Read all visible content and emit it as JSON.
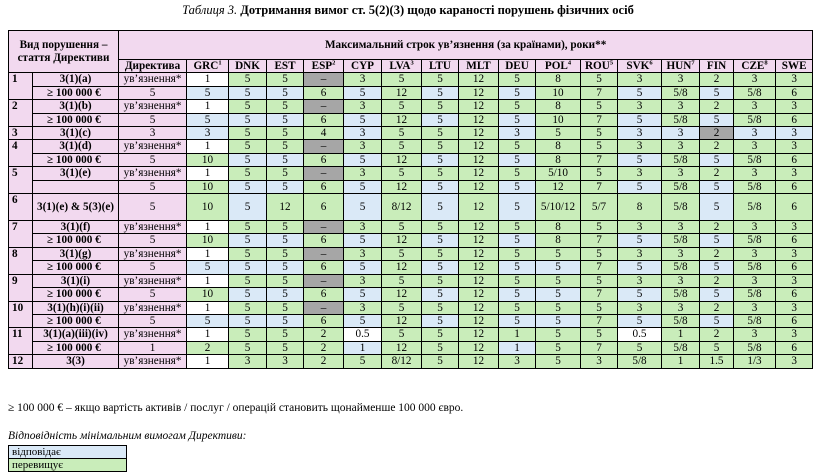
{
  "caption": {
    "lead": "Таблиця 3.",
    "title": "Дотримання вимог ст. 5(2)(3) щодо караності порушень фізичних осіб"
  },
  "header": {
    "col_violation": "Вид порушення – стаття Директиви",
    "col_max_term": "Максимальний строк ув’язнення (за країнами), роки**",
    "directive": "Директива",
    "countries": [
      {
        "code": "GRC",
        "sup": "1"
      },
      {
        "code": "DNK",
        "sup": ""
      },
      {
        "code": "EST",
        "sup": ""
      },
      {
        "code": "ESP",
        "sup": "2"
      },
      {
        "code": "CYP",
        "sup": ""
      },
      {
        "code": "LVA",
        "sup": "3"
      },
      {
        "code": "LTU",
        "sup": ""
      },
      {
        "code": "MLT",
        "sup": ""
      },
      {
        "code": "DEU",
        "sup": ""
      },
      {
        "code": "POL",
        "sup": "4"
      },
      {
        "code": "ROU",
        "sup": "5"
      },
      {
        "code": "SVK",
        "sup": "6"
      },
      {
        "code": "HUN",
        "sup": "7"
      },
      {
        "code": "FIN",
        "sup": ""
      },
      {
        "code": "CZE",
        "sup": "8"
      },
      {
        "code": "SWE",
        "sup": ""
      }
    ]
  },
  "colors": {
    "pink": "#f2d9ef",
    "blue": "#dae9f7",
    "green": "#c9edba",
    "gray": "#a6a6a6"
  },
  "groups": [
    {
      "num": "1",
      "rows": [
        {
          "art": "3(1)(a)",
          "dir": "ув’язнення*",
          "vals": [
            "1",
            "5",
            "5",
            "–",
            "3",
            "5",
            "5",
            "12",
            "5",
            "8",
            "5",
            "3",
            "3",
            "2",
            "3",
            "3"
          ],
          "colors": [
            "w",
            "g",
            "g",
            "y",
            "g",
            "g",
            "g",
            "g",
            "g",
            "g",
            "g",
            "g",
            "g",
            "g",
            "g",
            "g"
          ]
        },
        {
          "art": "≥ 100 000 €",
          "dir": "5",
          "vals": [
            "5",
            "5",
            "5",
            "6",
            "5",
            "12",
            "5",
            "12",
            "5",
            "10",
            "7",
            "5",
            "5/8",
            "5",
            "5/8",
            "6"
          ],
          "colors": [
            "b",
            "b",
            "b",
            "g",
            "b",
            "g",
            "b",
            "g",
            "b",
            "g",
            "g",
            "b",
            "g",
            "b",
            "g",
            "g"
          ]
        }
      ]
    },
    {
      "num": "2",
      "rows": [
        {
          "art": "3(1)(b)",
          "dir": "ув’язнення*",
          "vals": [
            "1",
            "5",
            "5",
            "–",
            "3",
            "5",
            "5",
            "12",
            "5",
            "8",
            "5",
            "3",
            "3",
            "2",
            "3",
            "3"
          ],
          "colors": [
            "w",
            "g",
            "g",
            "y",
            "g",
            "g",
            "g",
            "g",
            "g",
            "g",
            "g",
            "g",
            "g",
            "g",
            "g",
            "g"
          ]
        },
        {
          "art": "≥ 100 000 €",
          "dir": "5",
          "vals": [
            "5",
            "5",
            "5",
            "6",
            "5",
            "12",
            "5",
            "12",
            "5",
            "10",
            "7",
            "5",
            "5/8",
            "5",
            "5/8",
            "6"
          ],
          "colors": [
            "b",
            "b",
            "b",
            "g",
            "b",
            "g",
            "b",
            "g",
            "b",
            "g",
            "g",
            "b",
            "g",
            "b",
            "g",
            "g"
          ]
        }
      ]
    },
    {
      "num": "3",
      "rows": [
        {
          "art": "3(1)(c)",
          "dir": "3",
          "vals": [
            "3",
            "5",
            "5",
            "4",
            "3",
            "5",
            "5",
            "12",
            "3",
            "5",
            "5",
            "3",
            "3",
            "2",
            "3",
            "3"
          ],
          "colors": [
            "b",
            "g",
            "g",
            "g",
            "b",
            "g",
            "g",
            "g",
            "b",
            "g",
            "g",
            "b",
            "b",
            "y",
            "b",
            "b"
          ]
        }
      ]
    },
    {
      "num": "4",
      "rows": [
        {
          "art": "3(1)(d)",
          "dir": "ув’язнення*",
          "vals": [
            "1",
            "5",
            "5",
            "–",
            "3",
            "5",
            "5",
            "12",
            "5",
            "8",
            "5",
            "3",
            "3",
            "2",
            "3",
            "3"
          ],
          "colors": [
            "w",
            "g",
            "g",
            "y",
            "g",
            "g",
            "g",
            "g",
            "g",
            "g",
            "g",
            "g",
            "g",
            "g",
            "g",
            "g"
          ]
        },
        {
          "art": "≥ 100 000 €",
          "dir": "5",
          "vals": [
            "10",
            "5",
            "5",
            "6",
            "5",
            "12",
            "5",
            "12",
            "5",
            "8",
            "7",
            "5",
            "5/8",
            "5",
            "5/8",
            "6"
          ],
          "colors": [
            "g",
            "b",
            "b",
            "g",
            "b",
            "g",
            "b",
            "g",
            "b",
            "g",
            "g",
            "b",
            "g",
            "b",
            "g",
            "g"
          ]
        }
      ]
    },
    {
      "num": "5",
      "rows": [
        {
          "art": "3(1)(e)",
          "dir": "ув’язнення*",
          "vals": [
            "1",
            "5",
            "5",
            "–",
            "3",
            "5",
            "5",
            "12",
            "5",
            "5/10",
            "5",
            "3",
            "3",
            "2",
            "3",
            "3"
          ],
          "colors": [
            "w",
            "g",
            "g",
            "y",
            "g",
            "g",
            "g",
            "g",
            "g",
            "g",
            "g",
            "g",
            "g",
            "g",
            "g",
            "g"
          ]
        },
        {
          "art": "",
          "dir": "5",
          "vals": [
            "10",
            "5",
            "5",
            "6",
            "5",
            "12",
            "5",
            "12",
            "5",
            "12",
            "7",
            "5",
            "5/8",
            "5",
            "5/8",
            "6"
          ],
          "colors": [
            "g",
            "b",
            "b",
            "g",
            "b",
            "g",
            "b",
            "g",
            "b",
            "g",
            "g",
            "b",
            "g",
            "b",
            "g",
            "g"
          ]
        }
      ]
    },
    {
      "num": "6",
      "rows": [
        {
          "art": "3(1)(e) & 5(3)(e)",
          "dir": "5",
          "vals": [
            "10",
            "5",
            "12",
            "6",
            "5",
            "8/12",
            "5",
            "12",
            "5",
            "5/10/12",
            "5/7",
            "8",
            "5/8",
            "5",
            "5/8",
            "6"
          ],
          "colors": [
            "g",
            "b",
            "g",
            "g",
            "b",
            "g",
            "b",
            "g",
            "b",
            "g",
            "g",
            "g",
            "g",
            "b",
            "g",
            "g"
          ],
          "tall": true
        }
      ]
    },
    {
      "num": "7",
      "rows": [
        {
          "art": "3(1)(f)",
          "dir": "ув’язнення*",
          "vals": [
            "1",
            "5",
            "5",
            "–",
            "3",
            "5",
            "5",
            "12",
            "5",
            "8",
            "5",
            "3",
            "3",
            "2",
            "3",
            "3"
          ],
          "colors": [
            "w",
            "g",
            "g",
            "y",
            "g",
            "g",
            "g",
            "g",
            "g",
            "g",
            "g",
            "g",
            "g",
            "g",
            "g",
            "g"
          ]
        },
        {
          "art": "≥ 100 000 €",
          "dir": "5",
          "vals": [
            "10",
            "5",
            "5",
            "6",
            "5",
            "12",
            "5",
            "12",
            "5",
            "8",
            "7",
            "5",
            "5/8",
            "5",
            "5/8",
            "6"
          ],
          "colors": [
            "g",
            "b",
            "b",
            "g",
            "b",
            "g",
            "b",
            "g",
            "b",
            "g",
            "g",
            "b",
            "g",
            "b",
            "g",
            "g"
          ]
        }
      ]
    },
    {
      "num": "8",
      "rows": [
        {
          "art": "3(1)(g)",
          "dir": "ув’язнення*",
          "vals": [
            "1",
            "5",
            "5",
            "–",
            "3",
            "5",
            "5",
            "12",
            "5",
            "5",
            "5",
            "3",
            "3",
            "2",
            "3",
            "3"
          ],
          "colors": [
            "w",
            "g",
            "g",
            "y",
            "g",
            "g",
            "g",
            "g",
            "g",
            "g",
            "g",
            "g",
            "g",
            "g",
            "g",
            "g"
          ]
        },
        {
          "art": "≥ 100 000 €",
          "dir": "5",
          "vals": [
            "5",
            "5",
            "5",
            "6",
            "5",
            "12",
            "5",
            "12",
            "5",
            "5",
            "7",
            "5",
            "5/8",
            "5",
            "5/8",
            "6"
          ],
          "colors": [
            "b",
            "b",
            "b",
            "g",
            "b",
            "g",
            "b",
            "g",
            "b",
            "b",
            "g",
            "b",
            "g",
            "b",
            "g",
            "g"
          ]
        }
      ]
    },
    {
      "num": "9",
      "rows": [
        {
          "art": "3(1)(i)",
          "dir": "ув’язнення*",
          "vals": [
            "1",
            "5",
            "5",
            "–",
            "3",
            "5",
            "5",
            "12",
            "5",
            "5",
            "5",
            "3",
            "3",
            "2",
            "3",
            "3"
          ],
          "colors": [
            "w",
            "g",
            "g",
            "y",
            "g",
            "g",
            "g",
            "g",
            "g",
            "g",
            "g",
            "g",
            "g",
            "g",
            "g",
            "g"
          ]
        },
        {
          "art": "≥ 100 000 €",
          "dir": "5",
          "vals": [
            "10",
            "5",
            "5",
            "6",
            "5",
            "12",
            "5",
            "12",
            "5",
            "5",
            "7",
            "5",
            "5/8",
            "5",
            "5/8",
            "6"
          ],
          "colors": [
            "g",
            "b",
            "b",
            "g",
            "b",
            "g",
            "b",
            "g",
            "b",
            "b",
            "g",
            "b",
            "g",
            "b",
            "g",
            "g"
          ]
        }
      ]
    },
    {
      "num": "10",
      "rows": [
        {
          "art": "3(1)(h)(i)(ii)",
          "dir": "ув’язнення*",
          "vals": [
            "1",
            "5",
            "5",
            "–",
            "3",
            "5",
            "5",
            "12",
            "5",
            "5",
            "5",
            "3",
            "3",
            "2",
            "3",
            "3"
          ],
          "colors": [
            "w",
            "g",
            "g",
            "y",
            "g",
            "g",
            "g",
            "g",
            "g",
            "g",
            "g",
            "g",
            "g",
            "g",
            "g",
            "g"
          ]
        },
        {
          "art": "≥ 100 000 €",
          "dir": "5",
          "vals": [
            "5",
            "5",
            "5",
            "6",
            "5",
            "12",
            "5",
            "12",
            "5",
            "5",
            "7",
            "5",
            "5/8",
            "5",
            "5/8",
            "6"
          ],
          "colors": [
            "b",
            "b",
            "b",
            "g",
            "b",
            "g",
            "b",
            "g",
            "b",
            "b",
            "g",
            "b",
            "g",
            "b",
            "g",
            "g"
          ]
        }
      ]
    },
    {
      "num": "11",
      "rows": [
        {
          "art": "3(1)(a)(iii)(iv)",
          "dir": "ув’язнення*",
          "vals": [
            "1",
            "5",
            "5",
            "2",
            "0.5",
            "5",
            "5",
            "12",
            "1",
            "5",
            "5",
            "0.5",
            "1",
            "2",
            "3",
            "3"
          ],
          "colors": [
            "w",
            "g",
            "g",
            "g",
            "w",
            "g",
            "g",
            "g",
            "g",
            "g",
            "g",
            "w",
            "g",
            "g",
            "g",
            "g"
          ]
        },
        {
          "art": "≥ 100 000 €",
          "dir": "1",
          "vals": [
            "2",
            "5",
            "5",
            "2",
            "1",
            "12",
            "5",
            "12",
            "1",
            "5",
            "7",
            "5",
            "5/8",
            "5",
            "5/8",
            "6"
          ],
          "colors": [
            "g",
            "g",
            "g",
            "g",
            "b",
            "g",
            "g",
            "g",
            "b",
            "g",
            "g",
            "g",
            "g",
            "g",
            "g",
            "g"
          ]
        }
      ]
    },
    {
      "num": "12",
      "rows": [
        {
          "art": "3(3)",
          "dir": "ув’язнення*",
          "vals": [
            "1",
            "3",
            "3",
            "2",
            "5",
            "8/12",
            "5",
            "12",
            "3",
            "5",
            "3",
            "5/8",
            "1",
            "1.5",
            "1/3",
            "3"
          ],
          "colors": [
            "w",
            "g",
            "g",
            "g",
            "g",
            "g",
            "g",
            "g",
            "g",
            "g",
            "g",
            "g",
            "g",
            "g",
            "g",
            "g"
          ]
        }
      ]
    }
  ],
  "note": "≥ 100 000 € – якщо вартість активів / послуг / операцій становить щонайменше 100 000 євро.",
  "legend": {
    "title": "Відповідність мінімальним вимогам Директиви:",
    "items": [
      {
        "label": "відповідає",
        "color": "#dae9f7"
      },
      {
        "label": "перевищує",
        "color": "#c9edba"
      }
    ]
  }
}
